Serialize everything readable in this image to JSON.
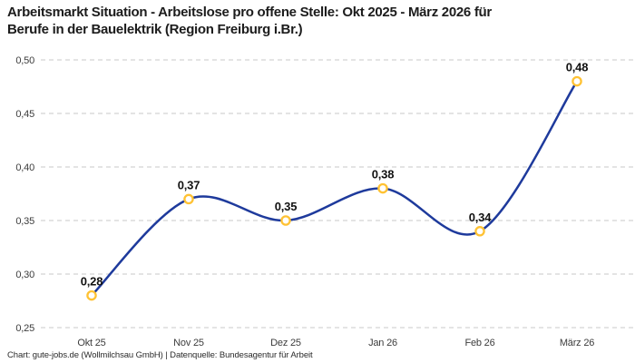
{
  "header": {
    "title_line1": "Arbeitsmarkt Situation - Arbeitslose pro offene Stelle: Okt 2025 - März 2026 für",
    "title_line2": "Berufe in der Bauelektrik (Region Freiburg i.Br.)"
  },
  "footer": {
    "credit": "Chart: gute-jobs.de (Wollmilchsau GmbH) | Datenquelle: Bundesagentur für Arbeit"
  },
  "chart_data": {
    "type": "line",
    "title": "Arbeitsmarkt Situation - Arbeitslose pro offene Stelle: Okt 2025 - März 2026 für Berufe in der Bauelektrik (Region Freiburg i.Br.)",
    "categories": [
      "Okt 25",
      "Nov 25",
      "Dez 25",
      "Jan 26",
      "Feb 26",
      "März 26"
    ],
    "values": [
      0.28,
      0.37,
      0.35,
      0.38,
      0.34,
      0.48
    ],
    "point_labels": [
      "0,28",
      "0,37",
      "0,35",
      "0,38",
      "0,34",
      "0,48"
    ],
    "y_ticks": [
      {
        "label": "0,50",
        "value": 0.5
      },
      {
        "label": "0,45",
        "value": 0.45
      },
      {
        "label": "0,40",
        "value": 0.4
      },
      {
        "label": "0,35",
        "value": 0.35
      },
      {
        "label": "0,30",
        "value": 0.3
      },
      {
        "label": "0,25",
        "value": 0.25
      }
    ],
    "ylim": [
      0.25,
      0.5
    ],
    "xlabel": "",
    "ylabel": "",
    "grid": "horizontal-dashed",
    "legend": "none",
    "curve": "smooth-spline",
    "colors": {
      "line": "#1e3a9c",
      "marker_stroke": "#ffc233",
      "marker_fill": "#ffffff",
      "grid": "#c9c9c9",
      "axis_text": "#3c3c3c",
      "point_label": "#111111",
      "background": "#ffffff"
    }
  }
}
